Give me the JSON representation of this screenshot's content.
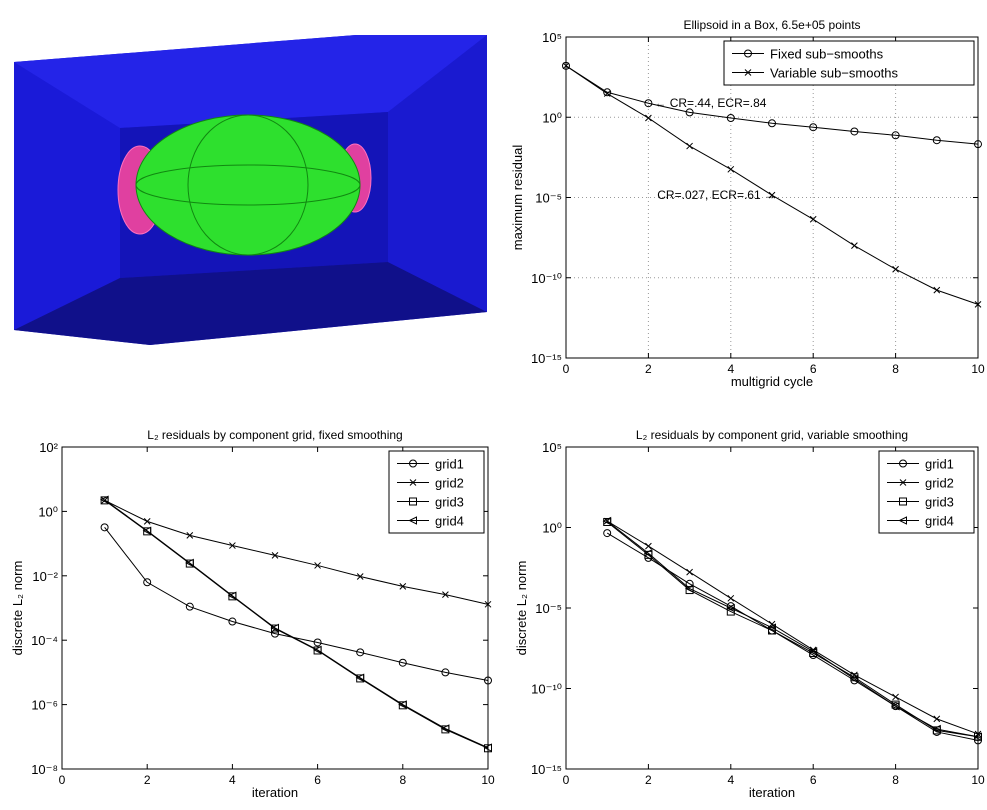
{
  "chart_data": [
    {
      "type": "line",
      "title": "Ellipsoid in a Box, 6.5e+05 points",
      "x_label": "multigrid cycle",
      "y_label": "maximum residual",
      "log_y": true,
      "grid": true,
      "legend": "upper right",
      "x": [
        0,
        1,
        2,
        3,
        4,
        5,
        6,
        7,
        8,
        9,
        10
      ],
      "xlim": [
        0,
        10
      ],
      "xticks": [
        0,
        2,
        4,
        6,
        8,
        10
      ],
      "ylim": [
        1e-15,
        100000
      ],
      "yticks": [
        {
          "value": 1e-15,
          "label": "10⁻¹⁵"
        },
        {
          "value": 1e-10,
          "label": "10⁻¹⁰"
        },
        {
          "value": 1e-05,
          "label": "10⁻⁵"
        },
        {
          "value": 1,
          "label": "10⁰"
        },
        {
          "value": 100000,
          "label": "10⁵"
        }
      ],
      "annotations": [
        "← CR=.44, ECR=.84",
        "CR=.027, ECR=.61 →"
      ],
      "series": [
        {
          "name": "Fixed sub−smooths",
          "color": "#000000",
          "marker": "o",
          "values": [
            1600,
            36,
            7.5,
            2,
            0.9,
            0.42,
            0.24,
            0.13,
            0.075,
            0.037,
            0.021
          ]
        },
        {
          "name": "Variable sub−smooths",
          "color": "#000000",
          "marker": "x",
          "values": [
            1600,
            30,
            0.9,
            0.016,
            0.00057,
            1.4e-05,
            4.4e-07,
            1e-08,
            3.4e-10,
            1.7e-11,
            2.2e-12
          ]
        }
      ]
    },
    {
      "type": "line",
      "title": "L₂ residuals by component grid, fixed smoothing",
      "x_label": "iteration",
      "y_label": "discrete L₂ norm",
      "log_y": true,
      "grid": false,
      "legend": "upper right",
      "x": [
        1,
        2,
        3,
        4,
        5,
        6,
        7,
        8,
        9,
        10
      ],
      "xlim": [
        0,
        10
      ],
      "xticks": [
        0,
        2,
        4,
        6,
        8,
        10
      ],
      "ylim": [
        1e-08,
        100
      ],
      "yticks": [
        {
          "value": 1e-08,
          "label": "10⁻⁸"
        },
        {
          "value": 1e-06,
          "label": "10⁻⁶"
        },
        {
          "value": 0.0001,
          "label": "10⁻⁴"
        },
        {
          "value": 0.01,
          "label": "10⁻²"
        },
        {
          "value": 1,
          "label": "10⁰"
        },
        {
          "value": 100,
          "label": "10²"
        }
      ],
      "series": [
        {
          "name": "grid1",
          "color": "#000000",
          "marker": "o",
          "values": [
            0.32,
            0.0063,
            0.0011,
            0.00038,
            0.00016,
            8.5e-05,
            4.2e-05,
            2e-05,
            1e-05,
            5.6e-06
          ]
        },
        {
          "name": "grid2",
          "color": "#000000",
          "marker": "x",
          "values": [
            2.2,
            0.49,
            0.18,
            0.087,
            0.043,
            0.021,
            0.0095,
            0.0047,
            0.0026,
            0.0013
          ]
        },
        {
          "name": "grid3",
          "color": "#000000",
          "marker": "s",
          "values": [
            2.2,
            0.24,
            0.024,
            0.0023,
            0.00023,
            4.8e-05,
            6.5e-06,
            9.5e-07,
            1.7e-07,
            4.4e-08
          ]
        },
        {
          "name": "grid4",
          "color": "#000000",
          "marker": "<",
          "values": [
            2.3,
            0.25,
            0.025,
            0.0024,
            0.00024,
            5e-05,
            6.8e-06,
            1e-06,
            1.8e-07,
            4.6e-08
          ]
        }
      ]
    },
    {
      "type": "line",
      "title": "L₂ residuals by component grid, variable smoothing",
      "x_label": "iteration",
      "y_label": "discrete L₂ norm",
      "log_y": true,
      "grid": false,
      "legend": "upper right",
      "x": [
        1,
        2,
        3,
        4,
        5,
        6,
        7,
        8,
        9,
        10
      ],
      "xlim": [
        0,
        10
      ],
      "xticks": [
        0,
        2,
        4,
        6,
        8,
        10
      ],
      "ylim": [
        1e-15,
        100000
      ],
      "yticks": [
        {
          "value": 1e-15,
          "label": "10⁻¹⁵"
        },
        {
          "value": 1e-10,
          "label": "10⁻¹⁰"
        },
        {
          "value": 1e-05,
          "label": "10⁻⁵"
        },
        {
          "value": 1,
          "label": "10⁰"
        },
        {
          "value": 100000,
          "label": "10⁵"
        }
      ],
      "series": [
        {
          "name": "grid1",
          "color": "#000000",
          "marker": "o",
          "values": [
            0.45,
            0.013,
            0.00032,
            1.3e-05,
            4e-07,
            1.2e-08,
            3.2e-10,
            8e-12,
            2e-13,
            6e-14
          ]
        },
        {
          "name": "grid2",
          "color": "#000000",
          "marker": "x",
          "values": [
            2.5,
            0.07,
            0.0017,
            4e-05,
            1e-06,
            2.5e-08,
            7e-10,
            3e-11,
            1.3e-12,
            1.5e-13
          ]
        },
        {
          "name": "grid3",
          "color": "#000000",
          "marker": "s",
          "values": [
            2.2,
            0.02,
            0.00013,
            6e-06,
            4e-07,
            1.6e-08,
            5e-10,
            1e-11,
            2.5e-13,
            1e-13
          ]
        },
        {
          "name": "grid4",
          "color": "#000000",
          "marker": "<",
          "values": [
            2.5,
            0.025,
            0.00016,
            1e-05,
            6e-07,
            2e-08,
            4e-10,
            8e-12,
            3e-13,
            1e-13
          ]
        }
      ]
    }
  ]
}
